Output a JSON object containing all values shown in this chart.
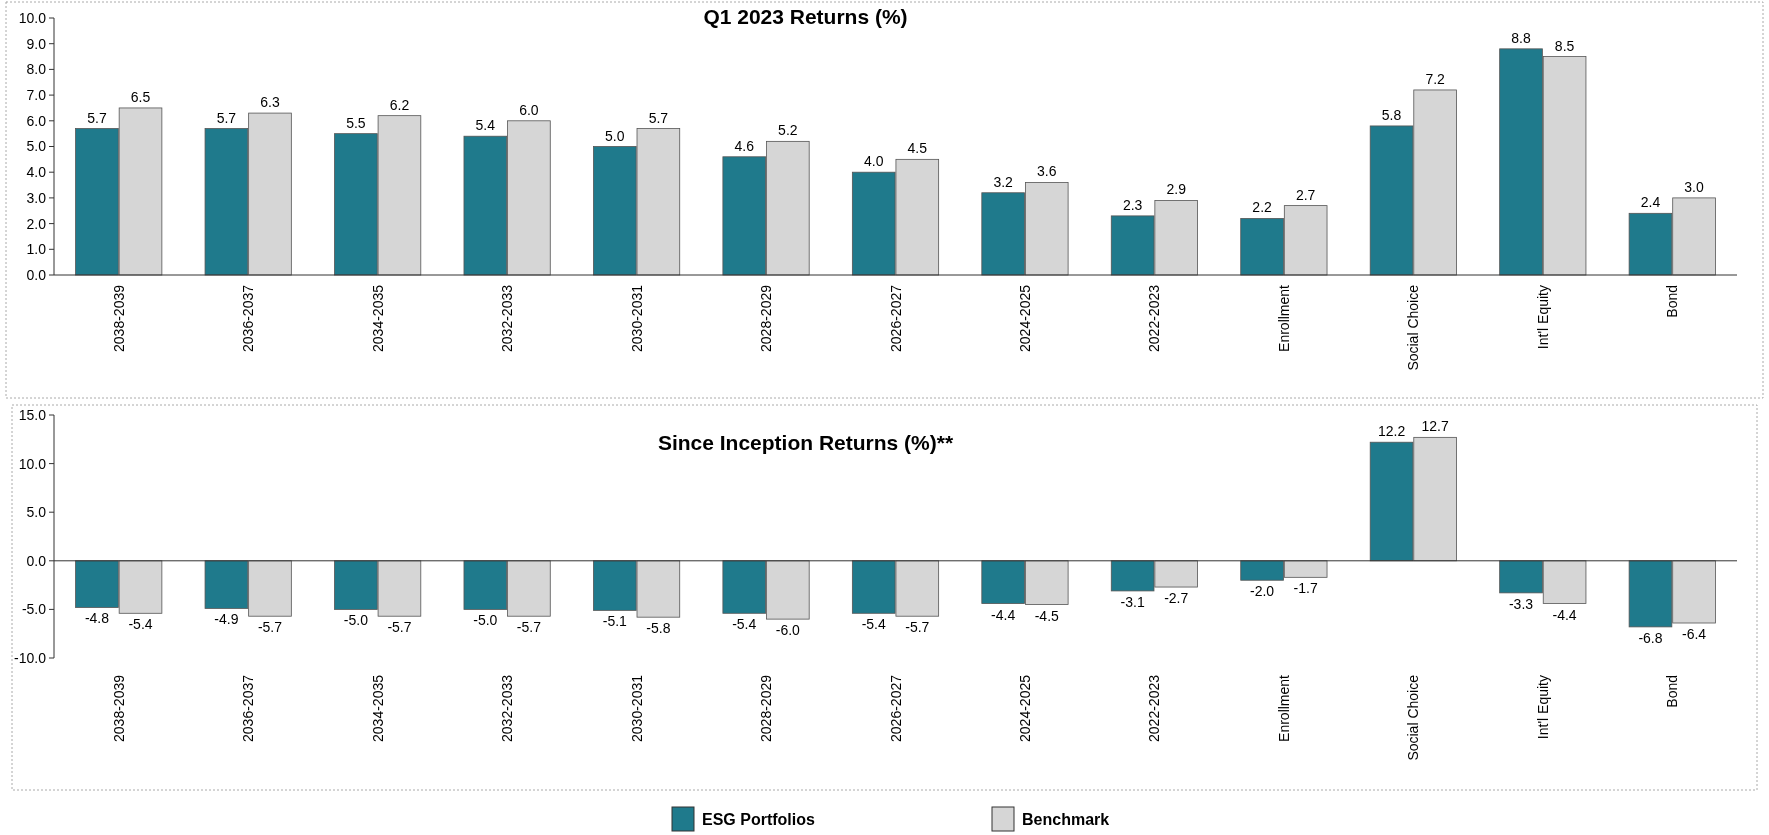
{
  "chart_data": [
    {
      "type": "bar",
      "title": "Q1 2023 Returns (%)",
      "categories": [
        "2038-2039",
        "2036-2037",
        "2034-2035",
        "2032-2033",
        "2030-2031",
        "2028-2029",
        "2026-2027",
        "2024-2025",
        "2022-2023",
        "Enrollment",
        "Social Choice",
        "Int'l Equity",
        "Bond"
      ],
      "series": [
        {
          "color": "#1f7a8c",
          "values": [
            5.7,
            5.7,
            5.5,
            5.4,
            5.0,
            4.6,
            4.0,
            3.2,
            2.3,
            2.2,
            5.8,
            8.8,
            2.4
          ],
          "value_labels": [
            "5.7",
            "5.7",
            "5.5",
            "5.4",
            "5.0",
            "4.6",
            "4.0",
            "3.2",
            "2.3",
            "2.2",
            "5.8",
            "8.8",
            "2.4"
          ]
        },
        {
          "color": "#d6d6d6",
          "values": [
            6.5,
            6.3,
            6.2,
            6.0,
            5.7,
            5.2,
            4.5,
            3.6,
            2.9,
            2.7,
            7.2,
            8.5,
            3.0
          ],
          "value_labels": [
            "6.5",
            "6.3",
            "6.2",
            "6.0",
            "5.7",
            "5.2",
            "4.5",
            "3.6",
            "2.9",
            "2.7",
            "7.2",
            "8.5",
            "3.0"
          ]
        }
      ],
      "ylim": [
        0,
        10
      ],
      "yticks": [
        {
          "value": 0,
          "label": "0.0"
        },
        {
          "value": 1,
          "label": "1.0"
        },
        {
          "value": 2,
          "label": "2.0"
        },
        {
          "value": 3,
          "label": "3.0"
        },
        {
          "value": 4,
          "label": "4.0"
        },
        {
          "value": 5,
          "label": "5.0"
        },
        {
          "value": 6,
          "label": "6.0"
        },
        {
          "value": 7,
          "label": "7.0"
        },
        {
          "value": 8,
          "label": "8.0"
        },
        {
          "value": 9,
          "label": "9.0"
        },
        {
          "value": 10,
          "label": "10.0"
        }
      ]
    },
    {
      "type": "bar",
      "title": "Since Inception Returns (%)**",
      "categories": [
        "2038-2039",
        "2036-2037",
        "2034-2035",
        "2032-2033",
        "2030-2031",
        "2028-2029",
        "2026-2027",
        "2024-2025",
        "2022-2023",
        "Enrollment",
        "Social Choice",
        "Int'l Equity",
        "Bond"
      ],
      "series": [
        {
          "name": "ESG Portfolios",
          "color": "#1f7a8c",
          "values": [
            -4.8,
            -4.9,
            -5.0,
            -5.0,
            -5.1,
            -5.4,
            -5.4,
            -4.4,
            -3.1,
            -2.0,
            12.2,
            -3.3,
            -6.8
          ],
          "value_labels": [
            "-4.8",
            "-4.9",
            "-5.0",
            "-5.0",
            "-5.1",
            "-5.4",
            "-5.4",
            "-4.4",
            "-3.1",
            "-2.0",
            "12.2",
            "-3.3",
            "-6.8"
          ]
        },
        {
          "name": "Benchmark",
          "color": "#d6d6d6",
          "values": [
            -5.4,
            -5.7,
            -5.7,
            -5.7,
            -5.8,
            -6.0,
            -5.7,
            -4.5,
            -2.7,
            -1.7,
            12.7,
            -4.4,
            -6.4
          ],
          "value_labels": [
            "-5.4",
            "-5.7",
            "-5.7",
            "-5.7",
            "-5.8",
            "-6.0",
            "-5.7",
            "-4.5",
            "-2.7",
            "-1.7",
            "12.7",
            "-4.4",
            "-6.4"
          ]
        }
      ],
      "ylim": [
        -10,
        15
      ],
      "yticks": [
        {
          "value": -10,
          "label": "-10.0"
        },
        {
          "value": -5,
          "label": "-5.0"
        },
        {
          "value": 0,
          "label": "0.0"
        },
        {
          "value": 5,
          "label": "5.0"
        },
        {
          "value": 10,
          "label": "10.0"
        },
        {
          "value": 15,
          "label": "15.0"
        }
      ],
      "legend": "bottom"
    }
  ]
}
